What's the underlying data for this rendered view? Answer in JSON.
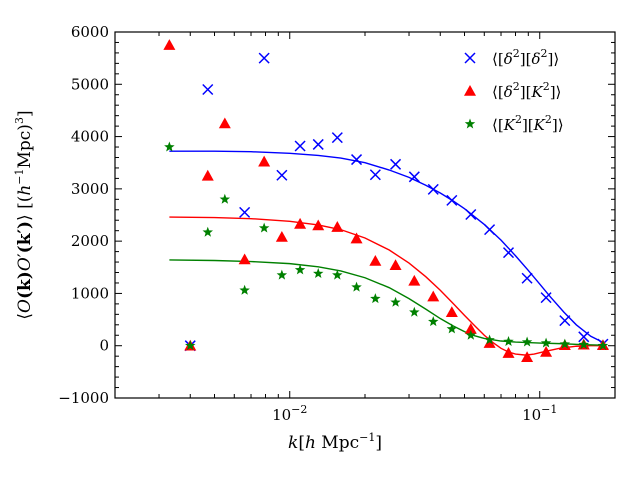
{
  "chart_data": {
    "type": "scatter",
    "title": "",
    "xlabel": "k[h Mpc⁻¹]",
    "ylabel": "⟨O(k)O′(k′)⟩ [(h⁻¹Mpc)³]",
    "xscale": "log",
    "xlim": [
      0.002,
      0.2
    ],
    "ylim": [
      -1000,
      6000
    ],
    "legend_position": "top-right",
    "x_tick_labels": [
      {
        "value": 0.01,
        "base": "10",
        "exp": "−2"
      },
      {
        "value": 0.1,
        "base": "10",
        "exp": "−1"
      }
    ],
    "y_ticks": [
      -1000,
      0,
      1000,
      2000,
      3000,
      4000,
      5000,
      6000
    ],
    "y_tick_labels": [
      "−1000",
      "0",
      "1000",
      "2000",
      "3000",
      "4000",
      "5000",
      "6000"
    ],
    "series": [
      {
        "name": "⟨[δ²][δ²]⟩",
        "color": "#0000ff",
        "marker": "x",
        "x": [
          0.004,
          0.0047,
          0.0066,
          0.0079,
          0.0093,
          0.011,
          0.013,
          0.0155,
          0.0185,
          0.022,
          0.0265,
          0.0315,
          0.0375,
          0.0445,
          0.053,
          0.063,
          0.075,
          0.089,
          0.106,
          0.126,
          0.15,
          0.179
        ],
        "y": [
          0,
          4900,
          2550,
          5500,
          3260,
          3820,
          3850,
          3980,
          3560,
          3270,
          3470,
          3230,
          2990,
          2780,
          2510,
          2220,
          1780,
          1290,
          920,
          480,
          170,
          30
        ],
        "fit_curve": {
          "x": [
            0.0033,
            0.005,
            0.007,
            0.01,
            0.013,
            0.016,
            0.02,
            0.025,
            0.03,
            0.035,
            0.04,
            0.045,
            0.05,
            0.06,
            0.07,
            0.08,
            0.09,
            0.1,
            0.11,
            0.125,
            0.14,
            0.16,
            0.18
          ],
          "y": [
            3720,
            3720,
            3710,
            3680,
            3640,
            3590,
            3500,
            3360,
            3220,
            3070,
            2920,
            2770,
            2620,
            2320,
            2020,
            1720,
            1440,
            1180,
            940,
            640,
            400,
            180,
            60
          ]
        }
      },
      {
        "name": "⟨[δ²][K²]⟩",
        "color": "#ff0000",
        "marker": "triangle",
        "x": [
          0.0033,
          0.004,
          0.0047,
          0.0055,
          0.0066,
          0.0079,
          0.0093,
          0.011,
          0.013,
          0.0155,
          0.0185,
          0.022,
          0.0265,
          0.0315,
          0.0375,
          0.0445,
          0.053,
          0.063,
          0.075,
          0.089,
          0.106,
          0.126,
          0.15,
          0.179
        ],
        "y": [
          5750,
          0,
          3250,
          4250,
          1650,
          3520,
          2080,
          2330,
          2300,
          2270,
          2050,
          1620,
          1540,
          1240,
          940,
          640,
          320,
          50,
          -140,
          -220,
          -120,
          10,
          20,
          10
        ],
        "fit_curve": {
          "x": [
            0.0033,
            0.005,
            0.007,
            0.01,
            0.013,
            0.016,
            0.02,
            0.025,
            0.03,
            0.035,
            0.04,
            0.045,
            0.05,
            0.055,
            0.06,
            0.065,
            0.07,
            0.075,
            0.08,
            0.088,
            0.095,
            0.105,
            0.12,
            0.14,
            0.16,
            0.18
          ],
          "y": [
            2460,
            2450,
            2430,
            2380,
            2310,
            2220,
            2060,
            1830,
            1580,
            1320,
            1060,
            810,
            580,
            380,
            200,
            60,
            -50,
            -120,
            -160,
            -180,
            -160,
            -110,
            -50,
            -10,
            0,
            0
          ]
        }
      },
      {
        "name": "⟨[K²][K²]⟩",
        "color": "#008000",
        "marker": "star",
        "x": [
          0.0033,
          0.004,
          0.0047,
          0.0055,
          0.0066,
          0.0079,
          0.0093,
          0.011,
          0.013,
          0.0155,
          0.0185,
          0.022,
          0.0265,
          0.0315,
          0.0375,
          0.0445,
          0.053,
          0.063,
          0.075,
          0.089,
          0.106,
          0.126,
          0.15,
          0.179
        ],
        "y": [
          3800,
          0,
          2170,
          2800,
          1060,
          2250,
          1350,
          1450,
          1380,
          1350,
          1120,
          900,
          830,
          640,
          460,
          320,
          200,
          110,
          80,
          70,
          50,
          30,
          20,
          0
        ],
        "fit_curve": {
          "x": [
            0.0033,
            0.005,
            0.007,
            0.01,
            0.013,
            0.016,
            0.02,
            0.025,
            0.03,
            0.035,
            0.04,
            0.045,
            0.05,
            0.055,
            0.06,
            0.07,
            0.08,
            0.1,
            0.12,
            0.15,
            0.18
          ],
          "y": [
            1640,
            1630,
            1610,
            1570,
            1510,
            1430,
            1300,
            1110,
            900,
            700,
            520,
            380,
            270,
            190,
            140,
            90,
            70,
            50,
            40,
            20,
            10
          ]
        }
      }
    ]
  }
}
